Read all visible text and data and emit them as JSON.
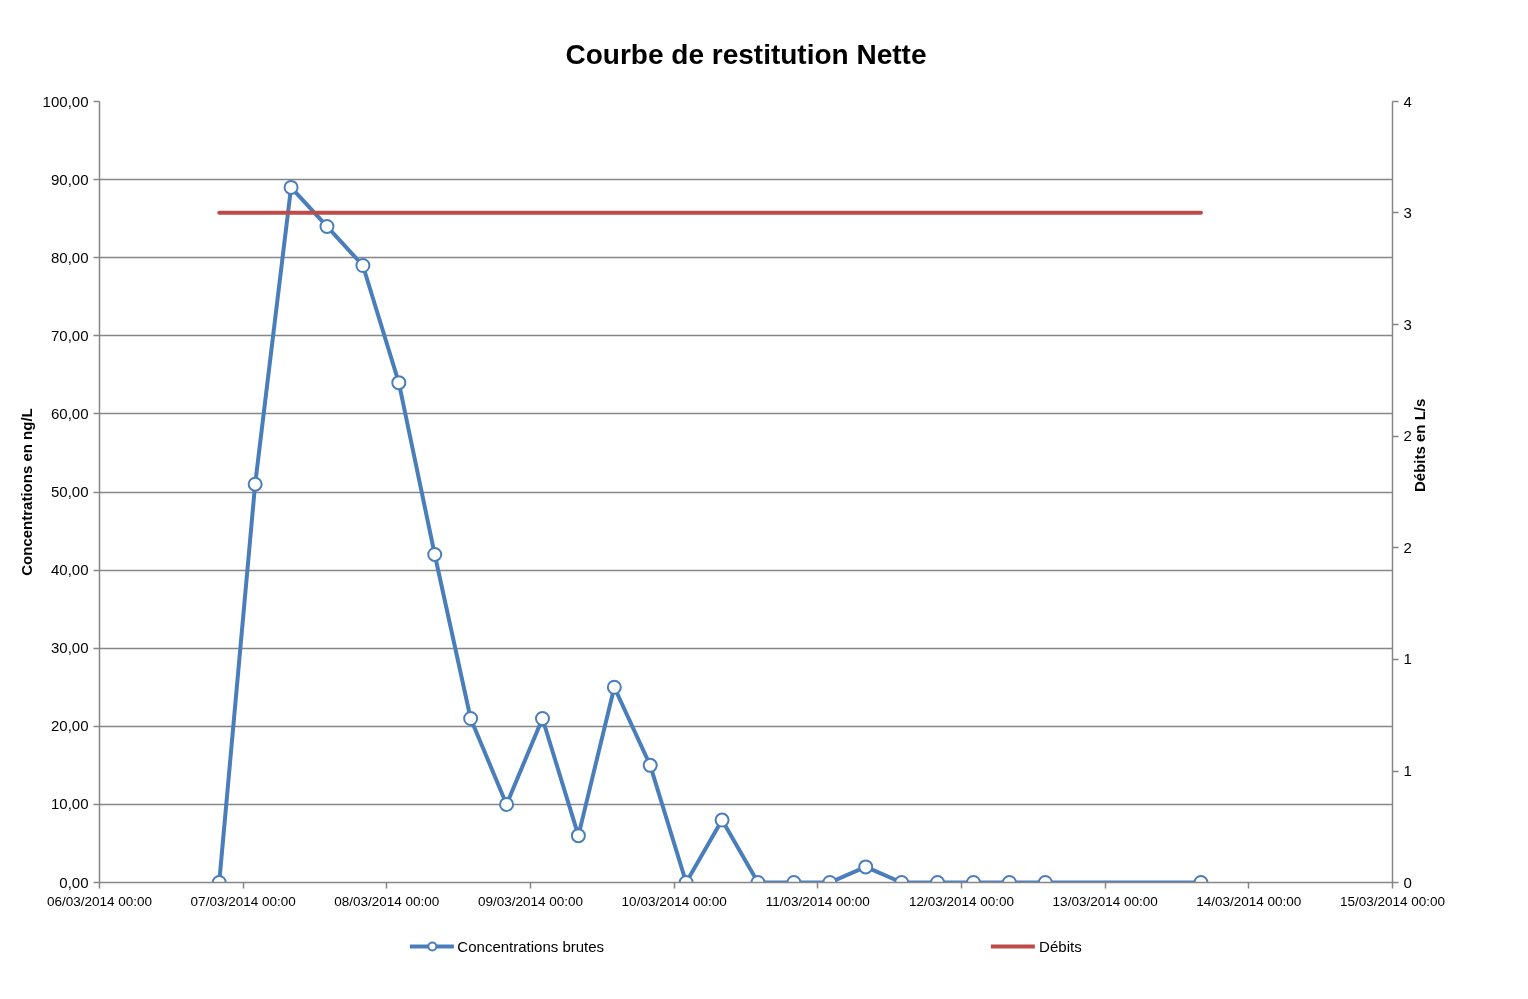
{
  "chart_data": {
    "type": "line",
    "title": "Courbe de restitution Nette",
    "ylabel": "Concentrations en ng/L",
    "y2label": "Débits en L/s",
    "x": [
      "2014-03-06T20:00",
      "2014-03-07T02:00",
      "2014-03-07T08:00",
      "2014-03-07T14:00",
      "2014-03-07T20:00",
      "2014-03-08T02:00",
      "2014-03-08T08:00",
      "2014-03-08T14:00",
      "2014-03-08T20:00",
      "2014-03-09T02:00",
      "2014-03-09T08:00",
      "2014-03-09T14:00",
      "2014-03-09T20:00",
      "2014-03-10T02:00",
      "2014-03-10T08:00",
      "2014-03-10T14:00",
      "2014-03-10T20:00",
      "2014-03-11T02:00",
      "2014-03-11T08:00",
      "2014-03-11T14:00",
      "2014-03-11T20:00",
      "2014-03-12T02:00",
      "2014-03-12T08:00",
      "2014-03-12T14:00",
      "2014-03-13T16:00"
    ],
    "xlim": [
      "2014-03-06",
      "2014-03-15"
    ],
    "xticks": [
      {
        "value": "2014-03-06",
        "label": "06/03/2014 00:00"
      },
      {
        "value": "2014-03-07",
        "label": "07/03/2014 00:00"
      },
      {
        "value": "2014-03-08",
        "label": "08/03/2014 00:00"
      },
      {
        "value": "2014-03-09",
        "label": "09/03/2014 00:00"
      },
      {
        "value": "2014-03-10",
        "label": "10/03/2014 00:00"
      },
      {
        "value": "2014-03-11",
        "label": "11/03/2014 00:00"
      },
      {
        "value": "2014-03-12",
        "label": "12/03/2014 00:00"
      },
      {
        "value": "2014-03-13",
        "label": "13/03/2014 00:00"
      },
      {
        "value": "2014-03-14",
        "label": "14/03/2014 00:00"
      },
      {
        "value": "2014-03-15",
        "label": "15/03/2014 00:00"
      }
    ],
    "ylim": [
      0,
      100
    ],
    "yticks": [
      {
        "value": 0,
        "label": "0,00"
      },
      {
        "value": 10,
        "label": "10,00"
      },
      {
        "value": 20,
        "label": "20,00"
      },
      {
        "value": 30,
        "label": "30,00"
      },
      {
        "value": 40,
        "label": "40,00"
      },
      {
        "value": 50,
        "label": "50,00"
      },
      {
        "value": 60,
        "label": "60,00"
      },
      {
        "value": 70,
        "label": "70,00"
      },
      {
        "value": 80,
        "label": "80,00"
      },
      {
        "value": 90,
        "label": "90,00"
      },
      {
        "value": 100,
        "label": "100,00"
      }
    ],
    "y2lim": [
      0,
      4
    ],
    "y2ticks": [
      0,
      {
        "value": 0.571,
        "label": "1"
      },
      {
        "value": 1.143,
        "label": "1"
      },
      {
        "value": 1.714,
        "label": "2"
      },
      {
        "value": 2.286,
        "label": "2"
      },
      {
        "value": 2.857,
        "label": "3"
      },
      {
        "value": 3.429,
        "label": "3"
      },
      4
    ],
    "series": [
      {
        "name": "Concentrations brutes",
        "color": "#4a7ebb",
        "marker": "circle",
        "values": [
          0,
          51,
          89,
          84,
          79,
          64,
          42,
          21,
          10,
          21,
          6,
          25,
          15,
          0,
          8,
          0,
          0,
          0,
          2,
          0,
          0,
          0,
          0,
          0,
          0
        ]
      },
      {
        "name": "Débits",
        "color": "#be4b48",
        "axis": "y2",
        "values": [
          3.43,
          3.43,
          3.43,
          3.43,
          3.43,
          3.43,
          3.43,
          3.43,
          3.43,
          3.43,
          3.43,
          3.43,
          3.43,
          3.43,
          3.43,
          3.43,
          3.43,
          3.43,
          3.43,
          3.43,
          3.43,
          3.43,
          3.43,
          3.43,
          3.43
        ]
      }
    ],
    "grid": "y",
    "legend": "bottom",
    "line_style": "solid"
  }
}
